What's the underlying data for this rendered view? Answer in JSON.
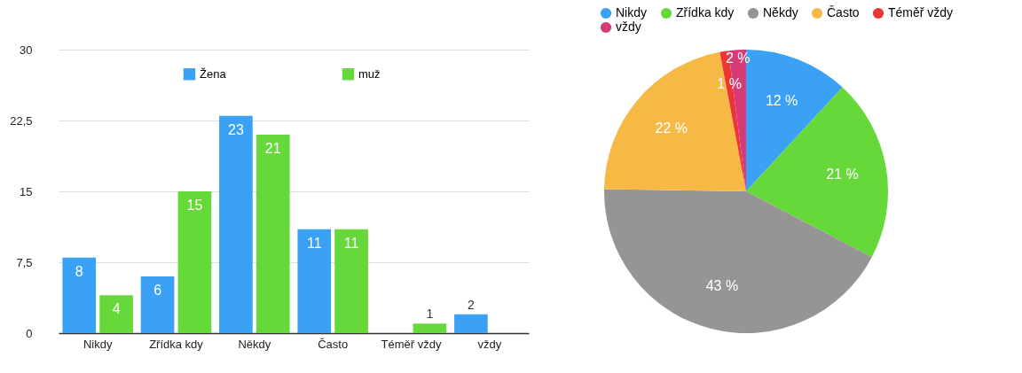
{
  "chart_data": [
    {
      "type": "bar",
      "categories": [
        "Nikdy",
        "Zřídka kdy",
        "Někdy",
        "Často",
        "Téměř vždy",
        "vždy"
      ],
      "series": [
        {
          "name": "Žena",
          "color": "#3ba1f6",
          "values": [
            8,
            6,
            23,
            11,
            null,
            2
          ]
        },
        {
          "name": "muž",
          "color": "#66d83a",
          "values": [
            4,
            15,
            21,
            11,
            1,
            null
          ]
        }
      ],
      "ylim": [
        0,
        30
      ],
      "yticks": [
        0,
        {
          "value": 7.5,
          "label": "7,5"
        },
        15,
        {
          "value": 22.5,
          "label": "22,5"
        },
        30
      ],
      "grid": "y",
      "legend": "top",
      "data_labels": true
    },
    {
      "type": "pie",
      "categories": [
        "Nikdy",
        "Zřídka kdy",
        "Někdy",
        "Často",
        "Téměř vždy",
        "vždy"
      ],
      "values": [
        12,
        21,
        43,
        22,
        1,
        2
      ],
      "colors": [
        "#3ba1f6",
        "#66d83a",
        "#959595",
        "#f7b946",
        "#ec3535",
        "#d63b78"
      ],
      "value_labels": [
        "12 %",
        "21 %",
        "43 %",
        "22 %",
        "1 %",
        "2 %"
      ],
      "legend": "top"
    }
  ]
}
